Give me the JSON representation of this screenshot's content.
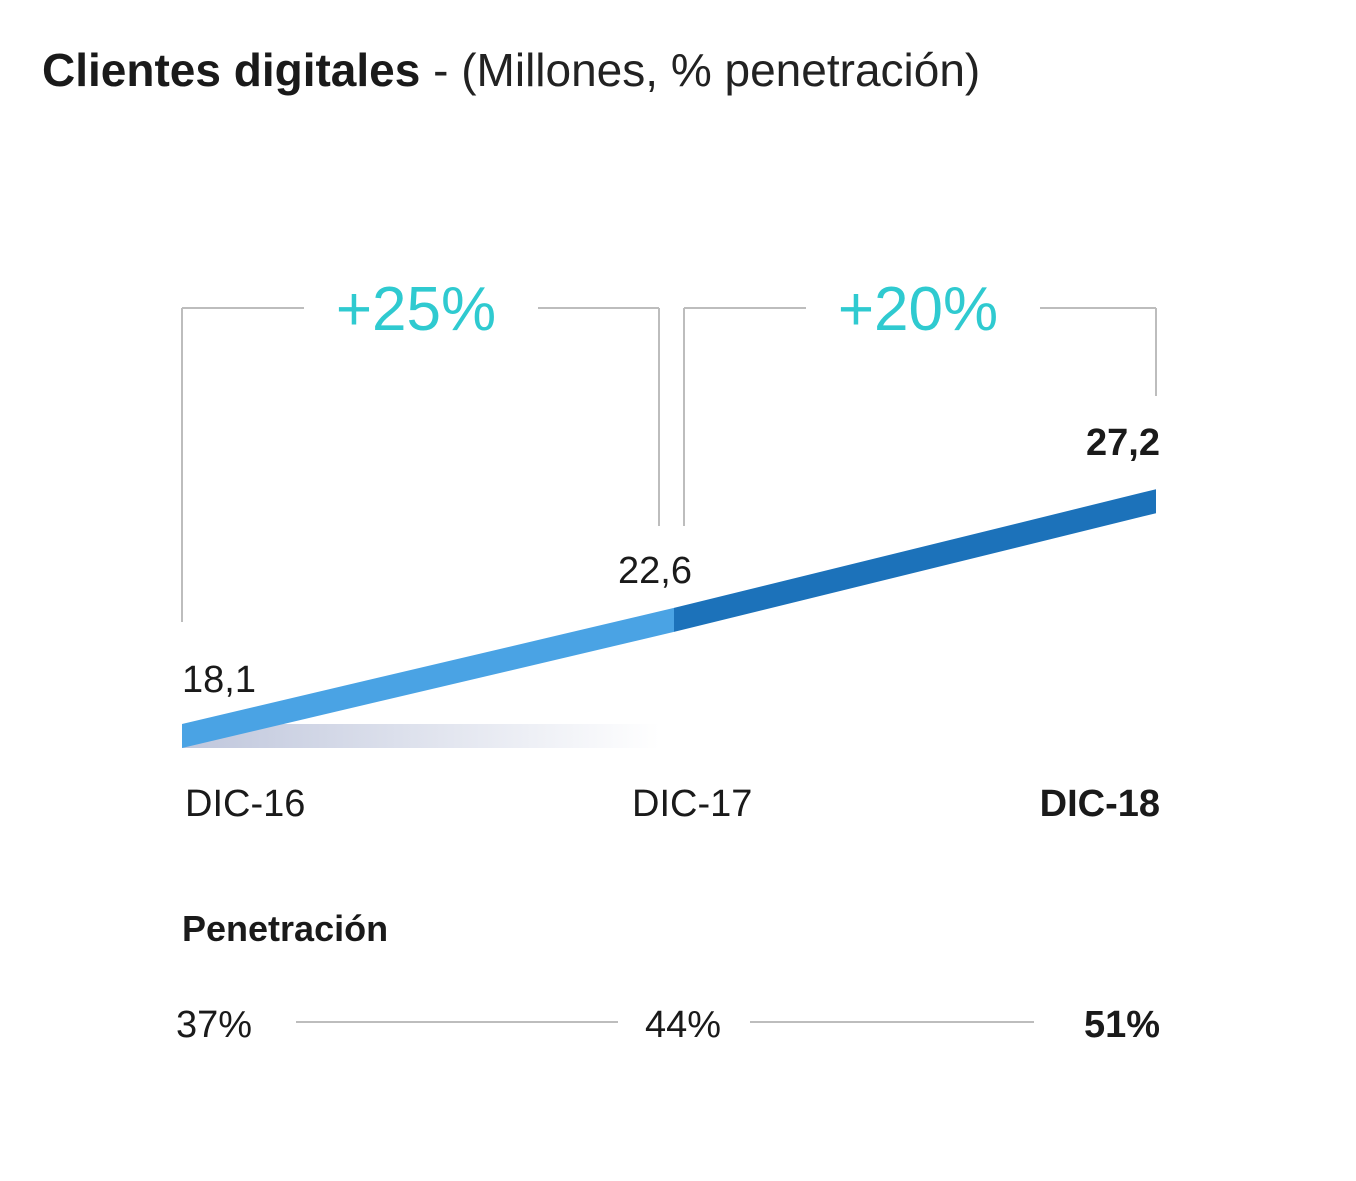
{
  "title": {
    "bold": "Clientes digitales",
    "rest": " - (Millones, % penetración)"
  },
  "colors": {
    "growth_label": "#2fcad0",
    "segment_1": "#4aa3e4",
    "segment_2": "#1c72ba",
    "bracket": "#bdbdbd",
    "text": "#1a1a1a"
  },
  "chart_data": {
    "type": "line",
    "title": "Clientes digitales - (Millones, % penetración)",
    "categories": [
      "DIC-16",
      "DIC-17",
      "DIC-18"
    ],
    "series": [
      {
        "values": [
          18.1,
          22.6,
          27.2
        ],
        "labels": [
          "18,1",
          "22,6",
          "27,2"
        ]
      }
    ],
    "growth": [
      {
        "from": "DIC-16",
        "to": "DIC-17",
        "label": "+25%"
      },
      {
        "from": "DIC-17",
        "to": "DIC-18",
        "label": "+20%"
      }
    ],
    "penetration": {
      "label": "Penetración",
      "values": [
        "37%",
        "44%",
        "51%"
      ]
    },
    "highlight": "DIC-18"
  }
}
